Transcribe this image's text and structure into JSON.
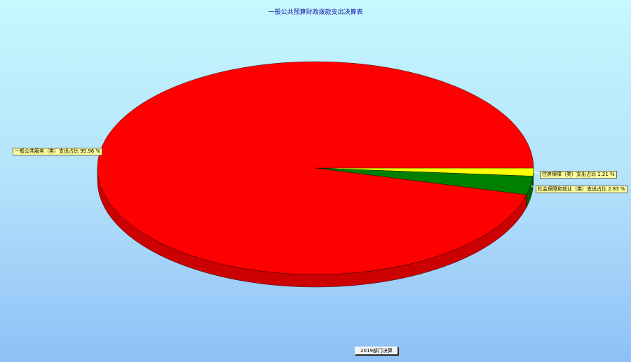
{
  "title": "一般公共预算财政拨款支出决算表",
  "button_label": "2019部门决算",
  "chart_data": {
    "type": "pie",
    "style": "3d",
    "title": "一般公共预算财政拨款支出决算表",
    "slices": [
      {
        "label": "住房保障（类）支出占比 1.21 %",
        "value": 1.21,
        "color": "#ffff00"
      },
      {
        "label": "社会保障和就业（类）支出占比 2.83 %",
        "value": 2.83,
        "color": "#008000"
      },
      {
        "label": "一般公共服务（类）支出占比 95.96 %",
        "value": 95.96,
        "color": "#ff0000"
      }
    ]
  }
}
